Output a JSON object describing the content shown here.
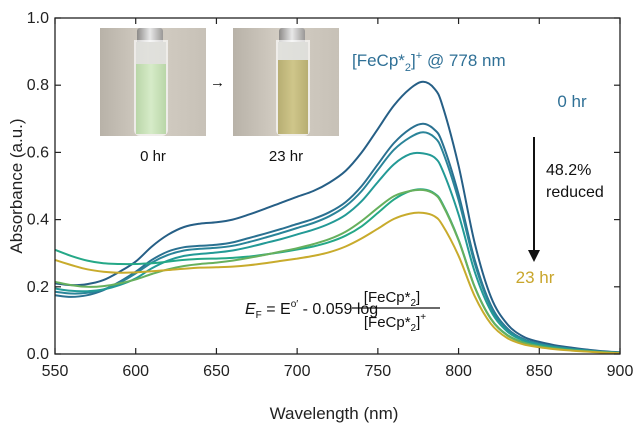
{
  "colors": {
    "reduced_label": "#c9a62c",
    "oxidized_label": "#2f7096",
    "series_colors": [
      "#265f86",
      "#2a7191",
      "#2a8499",
      "#239a96",
      "#25a887",
      "#67b05d",
      "#c8ab2c"
    ]
  },
  "inset": {
    "photo_left_label": "0 hr",
    "photo_right_label": "23 hr",
    "vial_left_color": "#b9d6a8",
    "vial_right_color": "#b7ae73",
    "arrow_icon": "arrow-right-icon"
  },
  "annotations": {
    "peak_species": "[FeCp*",
    "peak_sub": "2",
    "peak_close": "]",
    "peak_sup": "+",
    "peak_wavelength": " @ 778 nm",
    "start_time": "0 hr",
    "end_time": "23 hr",
    "percent": "48.2%",
    "reduced_word": "reduced",
    "arrow_icon": "arrow-down-icon",
    "equation": {
      "lhs_italic": "E",
      "lhs_sub": "F",
      "mid": " = E",
      "mid_sup": "o′",
      "rhs": " - 0.059 log",
      "num": "[FeCp*",
      "num_sub": "2",
      "num_close": "]",
      "den": "[FeCp*",
      "den_sub": "2",
      "den_close": "]",
      "den_sup": "+"
    }
  },
  "chart_data": {
    "type": "line",
    "xlabel": "Wavelength (nm)",
    "ylabel": "Absorbance (a.u.)",
    "xlim": [
      550,
      900
    ],
    "ylim": [
      0.0,
      1.0
    ],
    "xticks": [
      550,
      600,
      650,
      700,
      750,
      800,
      850,
      900
    ],
    "yticks": [
      0.0,
      0.2,
      0.4,
      0.6,
      0.8,
      1.0
    ],
    "ytick_labels": [
      "0.0",
      "0.2",
      "0.4",
      "0.6",
      "0.8",
      "1.0"
    ],
    "x": [
      550,
      560,
      570,
      580,
      590,
      600,
      610,
      620,
      630,
      640,
      650,
      660,
      670,
      680,
      690,
      700,
      710,
      720,
      730,
      740,
      750,
      760,
      770,
      778,
      785,
      790,
      800,
      810,
      820,
      830,
      840,
      850,
      860,
      870,
      880,
      890,
      900
    ],
    "series": [
      {
        "label_time": "0 hr",
        "values": [
          0.21,
          0.205,
          0.208,
          0.22,
          0.245,
          0.275,
          0.32,
          0.355,
          0.378,
          0.388,
          0.392,
          0.4,
          0.415,
          0.432,
          0.45,
          0.468,
          0.485,
          0.51,
          0.545,
          0.6,
          0.67,
          0.74,
          0.79,
          0.81,
          0.79,
          0.74,
          0.56,
          0.33,
          0.17,
          0.09,
          0.052,
          0.036,
          0.026,
          0.019,
          0.013,
          0.008,
          0.005
        ]
      },
      {
        "values": [
          0.175,
          0.17,
          0.175,
          0.19,
          0.215,
          0.245,
          0.28,
          0.305,
          0.318,
          0.322,
          0.325,
          0.332,
          0.345,
          0.358,
          0.372,
          0.387,
          0.402,
          0.422,
          0.452,
          0.5,
          0.565,
          0.628,
          0.67,
          0.685,
          0.668,
          0.628,
          0.475,
          0.28,
          0.145,
          0.077,
          0.045,
          0.031,
          0.022,
          0.016,
          0.011,
          0.007,
          0.004
        ]
      },
      {
        "values": [
          0.185,
          0.18,
          0.182,
          0.192,
          0.212,
          0.24,
          0.272,
          0.295,
          0.308,
          0.313,
          0.316,
          0.322,
          0.333,
          0.346,
          0.36,
          0.375,
          0.39,
          0.41,
          0.44,
          0.485,
          0.548,
          0.608,
          0.645,
          0.66,
          0.645,
          0.605,
          0.458,
          0.27,
          0.14,
          0.074,
          0.044,
          0.03,
          0.021,
          0.015,
          0.01,
          0.006,
          0.004
        ]
      },
      {
        "values": [
          0.195,
          0.188,
          0.187,
          0.192,
          0.205,
          0.225,
          0.255,
          0.278,
          0.292,
          0.298,
          0.302,
          0.308,
          0.318,
          0.33,
          0.342,
          0.356,
          0.37,
          0.388,
          0.414,
          0.455,
          0.512,
          0.565,
          0.595,
          0.597,
          0.585,
          0.548,
          0.415,
          0.245,
          0.128,
          0.068,
          0.041,
          0.028,
          0.02,
          0.014,
          0.01,
          0.006,
          0.004
        ]
      },
      {
        "values": [
          0.31,
          0.292,
          0.278,
          0.27,
          0.268,
          0.268,
          0.27,
          0.275,
          0.28,
          0.283,
          0.284,
          0.286,
          0.29,
          0.296,
          0.303,
          0.311,
          0.32,
          0.333,
          0.352,
          0.38,
          0.42,
          0.46,
          0.485,
          0.49,
          0.478,
          0.448,
          0.34,
          0.2,
          0.105,
          0.057,
          0.035,
          0.024,
          0.017,
          0.012,
          0.008,
          0.005,
          0.003
        ]
      },
      {
        "values": [
          0.215,
          0.205,
          0.2,
          0.202,
          0.21,
          0.222,
          0.238,
          0.252,
          0.262,
          0.268,
          0.272,
          0.278,
          0.286,
          0.295,
          0.305,
          0.315,
          0.327,
          0.342,
          0.364,
          0.396,
          0.435,
          0.47,
          0.485,
          0.488,
          0.476,
          0.445,
          0.338,
          0.199,
          0.104,
          0.056,
          0.034,
          0.023,
          0.016,
          0.011,
          0.008,
          0.005,
          0.003
        ]
      },
      {
        "label_time": "23 hr",
        "values": [
          0.28,
          0.265,
          0.252,
          0.245,
          0.242,
          0.243,
          0.246,
          0.25,
          0.254,
          0.257,
          0.258,
          0.26,
          0.264,
          0.27,
          0.277,
          0.284,
          0.292,
          0.303,
          0.32,
          0.344,
          0.373,
          0.402,
          0.418,
          0.42,
          0.41,
          0.384,
          0.292,
          0.172,
          0.09,
          0.048,
          0.029,
          0.02,
          0.014,
          0.01,
          0.007,
          0.004,
          0.002
        ]
      }
    ]
  }
}
